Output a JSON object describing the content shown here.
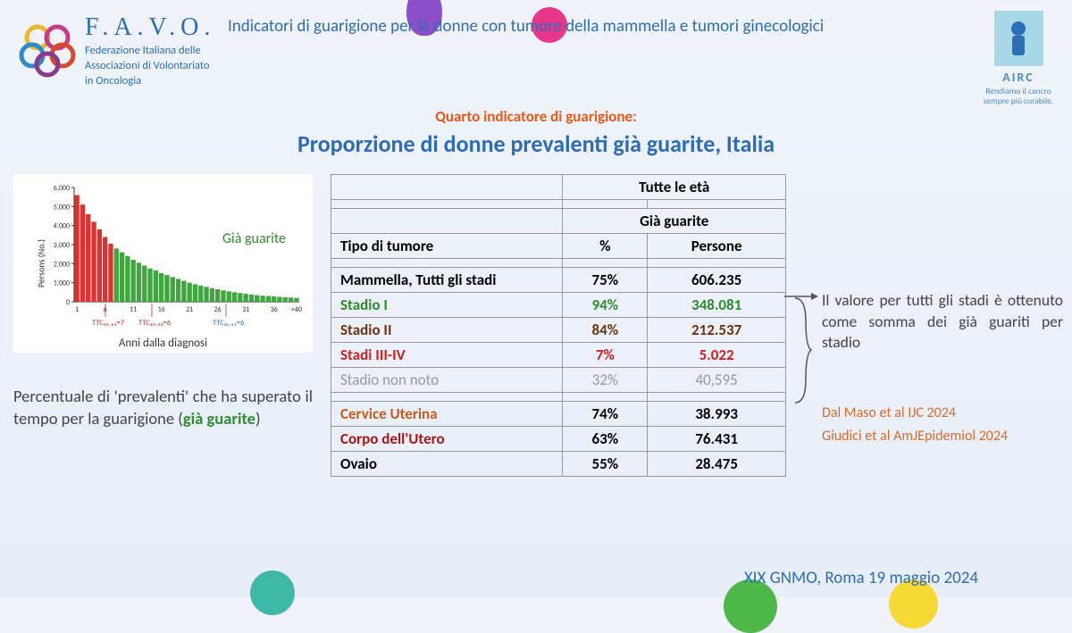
{
  "header": {
    "title_line": "Indicatori di guarigione per le donne con tumore della mammella e tumori ginecologici"
  },
  "favo": {
    "name": "F.A.V.O.",
    "sub1": "Federazione Italiana delle",
    "sub2": "Associazioni di Volontariato",
    "sub3": "in Oncologia"
  },
  "airc": {
    "name": "AIRC",
    "tag1": "Rendiamo il cancro",
    "tag2": "sempre più curabile."
  },
  "title": {
    "sup": "Quarto indicatore di guarigione:",
    "main": "Proporzione di donne prevalenti già guarite, Italia"
  },
  "chart": {
    "ylabel": "Persons (No.)",
    "ylim": [
      0,
      6000
    ],
    "ytick": [
      0,
      1000,
      2000,
      3000,
      4000,
      5000,
      6000
    ],
    "xlim": [
      1,
      40
    ],
    "xticks": [
      1,
      6,
      11,
      16,
      21,
      26,
      31,
      36,
      ">40"
    ],
    "ttc_labels": [
      "TTC₅₅₋₆₄=7",
      "TTC₄₅₋₅₄=6",
      "TTC₁₅₋₄₄=6"
    ],
    "ttc_colors": [
      "#c82222",
      "#c82222",
      "#2d6db4"
    ],
    "red_bars": [
      5600,
      5100,
      4600,
      4200,
      3800,
      3400,
      3050
    ],
    "green_bars": [
      2800,
      2600,
      2400,
      2200,
      2050,
      1900,
      1750,
      1650,
      1500,
      1400,
      1300,
      1200,
      1100,
      1000,
      920,
      850,
      780,
      720,
      660,
      600,
      550,
      500,
      460,
      420,
      380,
      350,
      320,
      300,
      280,
      260,
      240,
      220,
      200
    ],
    "bar_colors": {
      "red": "#e03030",
      "green": "#3fa63f"
    },
    "label_gia": "Già guarite",
    "xlabel": "Anni dalla diagnosi"
  },
  "left_text": {
    "line1": "Percentuale di 'prevalenti' che ha superato il tempo per la guarigione (",
    "green_word": "già guarite",
    "close": ")"
  },
  "table": {
    "header_span": "Tutte le età",
    "sub_span": "Già guarite",
    "col1": "Tipo di tumore",
    "col2": "%",
    "col3": "Persone",
    "rows": [
      {
        "label": "Mammella, Tutti gli stadi",
        "pct": "75%",
        "n": "606.235",
        "cls": "row-black"
      },
      {
        "label": "Stadio I",
        "pct": "94%",
        "n": "348.081",
        "cls": "row-green"
      },
      {
        "label": "Stadio II",
        "pct": "84%",
        "n": "212.537",
        "cls": "row-brown"
      },
      {
        "label": "Stadi III-IV",
        "pct": "7%",
        "n": "5.022",
        "cls": "row-red"
      },
      {
        "label": "Stadio non noto",
        "pct": "32%",
        "n": "40,595",
        "cls": "row-gray"
      }
    ],
    "rows2": [
      {
        "label": "Cervice Uterina",
        "pct": "74%",
        "n": "38.993",
        "cls": "row-orange"
      },
      {
        "label": "Corpo dell'Utero",
        "pct": "63%",
        "n": "76.431",
        "cls": "row-dred"
      },
      {
        "label": "Ovaio",
        "pct": "55%",
        "n": "28.475",
        "cls": "row-black"
      }
    ]
  },
  "right_note": "Il valore per tutti gli stadi è ottenuto come somma dei già guariti per stadio",
  "refs": {
    "r1": "Dal Maso et al IJC 2024",
    "r2": "Giudici et al AmJEpidemiol 2024"
  },
  "footer": "XIX GNMO, Roma 19 maggio 2024"
}
